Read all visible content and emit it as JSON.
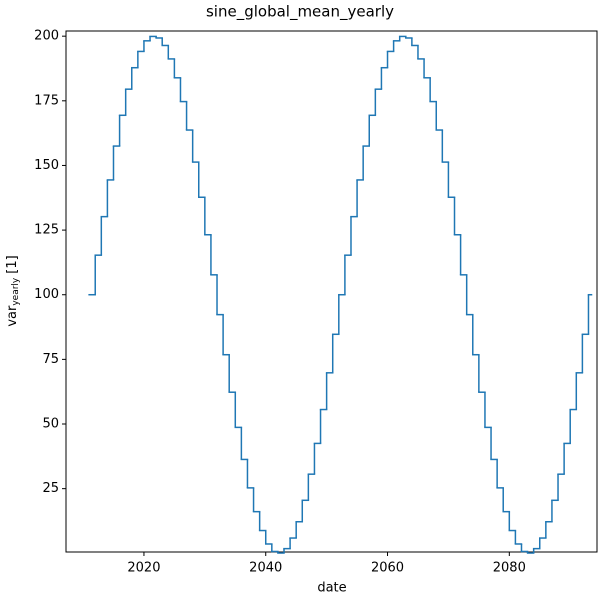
{
  "chart_data": {
    "type": "step",
    "title": "sine_global_mean_yearly",
    "xlabel": "date",
    "ylabel": {
      "base": "var",
      "subscript": "yearly",
      "unit": "[1]"
    },
    "x": [
      2011,
      2012,
      2013,
      2014,
      2015,
      2016,
      2017,
      2018,
      2019,
      2020,
      2021,
      2022,
      2023,
      2024,
      2025,
      2026,
      2027,
      2028,
      2029,
      2030,
      2031,
      2032,
      2033,
      2034,
      2035,
      2036,
      2037,
      2038,
      2039,
      2040,
      2041,
      2042,
      2043,
      2044,
      2045,
      2046,
      2047,
      2048,
      2049,
      2050,
      2051,
      2052,
      2053,
      2054,
      2055,
      2056,
      2057,
      2058,
      2059,
      2060,
      2061,
      2062,
      2063,
      2064,
      2065,
      2066,
      2067,
      2068,
      2069,
      2070,
      2071,
      2072,
      2073,
      2074,
      2075,
      2076,
      2077,
      2078,
      2079,
      2080,
      2081,
      2082,
      2083,
      2084,
      2085,
      2086,
      2087,
      2088,
      2089,
      2090,
      2091,
      2092,
      2093
    ],
    "series": [
      {
        "color": "#1f77b4",
        "values": [
          100,
          115.3,
          130.2,
          144.4,
          157.5,
          169.4,
          179.5,
          187.8,
          194.1,
          198.2,
          199.9,
          199.3,
          196.4,
          191.2,
          183.9,
          174.7,
          163.7,
          151.3,
          137.7,
          123.2,
          107.7,
          92.3,
          76.8,
          62.3,
          48.7,
          36.3,
          25.3,
          16.1,
          8.8,
          3.6,
          0.7,
          0.1,
          1.8,
          5.9,
          12.2,
          20.5,
          30.6,
          42.5,
          55.6,
          69.8,
          84.7,
          100,
          115.3,
          130.2,
          144.4,
          157.5,
          169.4,
          179.5,
          187.8,
          194.1,
          198.2,
          199.9,
          199.3,
          196.4,
          191.2,
          183.9,
          174.7,
          163.7,
          151.3,
          137.7,
          123.2,
          107.7,
          92.3,
          76.8,
          62.3,
          48.7,
          36.3,
          25.3,
          16.1,
          8.8,
          3.6,
          0.7,
          0.1,
          1.8,
          5.9,
          12.2,
          20.5,
          30.6,
          42.5,
          55.6,
          69.8,
          84.7,
          100
        ]
      }
    ],
    "xlim": [
      2007.2,
      2094.4
    ],
    "xticks": [
      2020,
      2040,
      2060,
      2080
    ],
    "ylim": [
      0.5,
      202
    ],
    "yticks": [
      25,
      50,
      75,
      100,
      125,
      150,
      175,
      200
    ]
  }
}
